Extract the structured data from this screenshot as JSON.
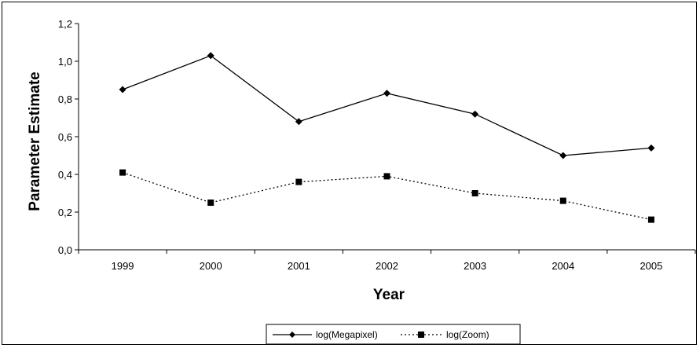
{
  "chart_data": {
    "type": "line",
    "title": "",
    "xlabel": "Year",
    "ylabel": "Parameter Estimate",
    "categories": [
      "1999",
      "2000",
      "2001",
      "2002",
      "2003",
      "2004",
      "2005"
    ],
    "ylim": [
      0,
      1.2
    ],
    "y_ticks": [
      "0,0",
      "0,2",
      "0,4",
      "0,6",
      "0,8",
      "1,0",
      "1,2"
    ],
    "grid": false,
    "legend_position": "bottom-center",
    "series": [
      {
        "name": "log(Megapixel)",
        "values": [
          0.85,
          1.03,
          0.68,
          0.83,
          0.72,
          0.5,
          0.54
        ],
        "marker": "diamond",
        "line_style": "solid",
        "color": "#000000"
      },
      {
        "name": "log(Zoom)",
        "values": [
          0.41,
          0.25,
          0.36,
          0.39,
          0.3,
          0.26,
          0.16
        ],
        "marker": "square",
        "line_style": "dotted",
        "color": "#000000"
      }
    ]
  }
}
